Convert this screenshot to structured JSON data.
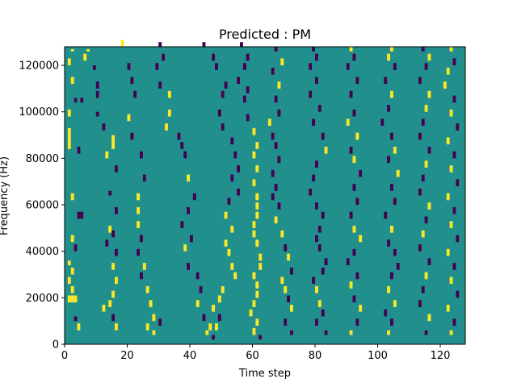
{
  "chart_data": {
    "type": "heatmap",
    "title": "Predicted : PM",
    "xlabel": "Time step",
    "ylabel": "Frequency (Hz)",
    "xlim": [
      0,
      128
    ],
    "ylim": [
      0,
      128000
    ],
    "x_ticks": [
      0,
      20,
      40,
      60,
      80,
      100,
      120
    ],
    "y_ticks": [
      0,
      20000,
      40000,
      60000,
      80000,
      100000,
      120000
    ],
    "colors": {
      "background": "#21908d",
      "high": "#fde725",
      "low": "#440154"
    },
    "n_time_steps": 128,
    "n_freq_bins": 128,
    "cells": [
      [
        2,
        126,
        1,
        "high"
      ],
      [
        1,
        120,
        3,
        "high"
      ],
      [
        2,
        112,
        3,
        "high"
      ],
      [
        3,
        104,
        2,
        "low"
      ],
      [
        5,
        104,
        2,
        "low"
      ],
      [
        1,
        98,
        3,
        "high"
      ],
      [
        1,
        90,
        3,
        "high"
      ],
      [
        1,
        84,
        6,
        "high"
      ],
      [
        4,
        82,
        3,
        "low"
      ],
      [
        2,
        62,
        3,
        "high"
      ],
      [
        4,
        54,
        3,
        "low"
      ],
      [
        5,
        54,
        3,
        "low"
      ],
      [
        2,
        44,
        3,
        "high"
      ],
      [
        3,
        40,
        3,
        "low"
      ],
      [
        1,
        34,
        2,
        "high"
      ],
      [
        2,
        30,
        3,
        "high"
      ],
      [
        1,
        26,
        3,
        "high"
      ],
      [
        2,
        22,
        3,
        "high"
      ],
      [
        1,
        18,
        3,
        "high"
      ],
      [
        2,
        18,
        3,
        "high"
      ],
      [
        3,
        18,
        3,
        "high"
      ],
      [
        3,
        10,
        2,
        "low"
      ],
      [
        4,
        6,
        3,
        "high"
      ],
      [
        7,
        126,
        1,
        "high"
      ],
      [
        6,
        122,
        3,
        "high"
      ],
      [
        9,
        118,
        2,
        "low"
      ],
      [
        10,
        110,
        3,
        "low"
      ],
      [
        10,
        106,
        3,
        "low"
      ],
      [
        10,
        98,
        2,
        "low"
      ],
      [
        12,
        92,
        3,
        "low"
      ],
      [
        15,
        84,
        6,
        "high"
      ],
      [
        13,
        80,
        3,
        "high"
      ],
      [
        16,
        74,
        3,
        "low"
      ],
      [
        14,
        64,
        2,
        "low"
      ],
      [
        16,
        56,
        3,
        "low"
      ],
      [
        14,
        48,
        3,
        "high"
      ],
      [
        15,
        46,
        3,
        "low"
      ],
      [
        13,
        42,
        3,
        "low"
      ],
      [
        16,
        38,
        3,
        "low"
      ],
      [
        15,
        32,
        3,
        "high"
      ],
      [
        16,
        26,
        3,
        "high"
      ],
      [
        15,
        20,
        3,
        "high"
      ],
      [
        14,
        16,
        3,
        "high"
      ],
      [
        12,
        14,
        3,
        "high"
      ],
      [
        15,
        10,
        3,
        "low"
      ],
      [
        16,
        6,
        3,
        "high"
      ],
      [
        18,
        128,
        3,
        "high"
      ],
      [
        20,
        118,
        3,
        "low"
      ],
      [
        21,
        112,
        3,
        "low"
      ],
      [
        22,
        106,
        3,
        "low"
      ],
      [
        20,
        96,
        3,
        "high"
      ],
      [
        21,
        88,
        3,
        "low"
      ],
      [
        24,
        80,
        3,
        "low"
      ],
      [
        25,
        70,
        3,
        "low"
      ],
      [
        23,
        62,
        3,
        "high"
      ],
      [
        23,
        56,
        3,
        "high"
      ],
      [
        23,
        50,
        3,
        "high"
      ],
      [
        24,
        44,
        3,
        "low"
      ],
      [
        23,
        38,
        3,
        "low"
      ],
      [
        25,
        32,
        3,
        "high"
      ],
      [
        24,
        28,
        3,
        "low"
      ],
      [
        26,
        22,
        3,
        "high"
      ],
      [
        27,
        16,
        3,
        "high"
      ],
      [
        28,
        10,
        3,
        "high"
      ],
      [
        30,
        8,
        3,
        "low"
      ],
      [
        26,
        6,
        3,
        "high"
      ],
      [
        28,
        4,
        2,
        "high"
      ],
      [
        30,
        128,
        2,
        "low"
      ],
      [
        31,
        122,
        3,
        "low"
      ],
      [
        29,
        118,
        3,
        "low"
      ],
      [
        30,
        110,
        3,
        "low"
      ],
      [
        33,
        106,
        3,
        "high"
      ],
      [
        33,
        98,
        3,
        "high"
      ],
      [
        32,
        92,
        3,
        "high"
      ],
      [
        36,
        88,
        3,
        "low"
      ],
      [
        37,
        84,
        3,
        "low"
      ],
      [
        38,
        80,
        3,
        "low"
      ],
      [
        39,
        70,
        3,
        "high"
      ],
      [
        41,
        62,
        3,
        "low"
      ],
      [
        39,
        56,
        3,
        "low"
      ],
      [
        37,
        50,
        3,
        "low"
      ],
      [
        40,
        44,
        3,
        "low"
      ],
      [
        38,
        40,
        3,
        "high"
      ],
      [
        39,
        32,
        3,
        "low"
      ],
      [
        42,
        28,
        3,
        "low"
      ],
      [
        43,
        22,
        3,
        "low"
      ],
      [
        42,
        16,
        3,
        "high"
      ],
      [
        44,
        10,
        3,
        "low"
      ],
      [
        46,
        6,
        3,
        "high"
      ],
      [
        45,
        4,
        2,
        "high"
      ],
      [
        44,
        128,
        2,
        "low"
      ],
      [
        47,
        122,
        3,
        "low"
      ],
      [
        48,
        118,
        3,
        "low"
      ],
      [
        51,
        110,
        3,
        "low"
      ],
      [
        50,
        106,
        3,
        "low"
      ],
      [
        49,
        98,
        3,
        "low"
      ],
      [
        50,
        92,
        3,
        "low"
      ],
      [
        53,
        86,
        3,
        "low"
      ],
      [
        54,
        80,
        3,
        "low"
      ],
      [
        55,
        74,
        3,
        "low"
      ],
      [
        53,
        70,
        3,
        "low"
      ],
      [
        55,
        64,
        3,
        "low"
      ],
      [
        52,
        60,
        3,
        "low"
      ],
      [
        51,
        54,
        3,
        "high"
      ],
      [
        53,
        48,
        3,
        "high"
      ],
      [
        51,
        42,
        3,
        "high"
      ],
      [
        52,
        38,
        3,
        "high"
      ],
      [
        53,
        32,
        3,
        "high"
      ],
      [
        54,
        28,
        3,
        "high"
      ],
      [
        50,
        22,
        3,
        "high"
      ],
      [
        49,
        18,
        3,
        "high"
      ],
      [
        47,
        14,
        3,
        "high"
      ],
      [
        49,
        10,
        3,
        "low"
      ],
      [
        48,
        6,
        3,
        "high"
      ],
      [
        47,
        2,
        2,
        "low"
      ],
      [
        56,
        128,
        2,
        "low"
      ],
      [
        58,
        122,
        3,
        "low"
      ],
      [
        57,
        118,
        3,
        "low"
      ],
      [
        55,
        112,
        3,
        "low"
      ],
      [
        58,
        108,
        3,
        "low"
      ],
      [
        57,
        104,
        3,
        "low"
      ],
      [
        58,
        96,
        3,
        "low"
      ],
      [
        60,
        90,
        3,
        "high"
      ],
      [
        61,
        84,
        3,
        "high"
      ],
      [
        60,
        80,
        3,
        "high"
      ],
      [
        61,
        74,
        3,
        "high"
      ],
      [
        60,
        68,
        3,
        "high"
      ],
      [
        61,
        62,
        3,
        "high"
      ],
      [
        61,
        58,
        3,
        "high"
      ],
      [
        61,
        54,
        3,
        "high"
      ],
      [
        60,
        50,
        3,
        "high"
      ],
      [
        60,
        46,
        3,
        "high"
      ],
      [
        61,
        42,
        3,
        "high"
      ],
      [
        62,
        36,
        3,
        "high"
      ],
      [
        62,
        32,
        3,
        "high"
      ],
      [
        60,
        28,
        3,
        "high"
      ],
      [
        61,
        24,
        3,
        "high"
      ],
      [
        61,
        20,
        3,
        "high"
      ],
      [
        60,
        16,
        3,
        "high"
      ],
      [
        59,
        12,
        3,
        "high"
      ],
      [
        61,
        8,
        3,
        "high"
      ],
      [
        60,
        4,
        3,
        "high"
      ],
      [
        62,
        2,
        2,
        "low"
      ],
      [
        67,
        126,
        2,
        "low"
      ],
      [
        69,
        120,
        3,
        "high"
      ],
      [
        66,
        116,
        3,
        "low"
      ],
      [
        68,
        110,
        3,
        "high"
      ],
      [
        67,
        104,
        3,
        "low"
      ],
      [
        68,
        98,
        3,
        "low"
      ],
      [
        65,
        94,
        3,
        "high"
      ],
      [
        66,
        88,
        3,
        "low"
      ],
      [
        67,
        84,
        3,
        "low"
      ],
      [
        68,
        78,
        3,
        "low"
      ],
      [
        66,
        72,
        3,
        "low"
      ],
      [
        67,
        66,
        3,
        "low"
      ],
      [
        66,
        62,
        3,
        "low"
      ],
      [
        68,
        58,
        3,
        "low"
      ],
      [
        67,
        52,
        3,
        "high"
      ],
      [
        69,
        46,
        3,
        "high"
      ],
      [
        70,
        40,
        3,
        "low"
      ],
      [
        71,
        36,
        3,
        "high"
      ],
      [
        72,
        30,
        3,
        "low"
      ],
      [
        69,
        26,
        3,
        "high"
      ],
      [
        70,
        22,
        3,
        "high"
      ],
      [
        71,
        18,
        3,
        "low"
      ],
      [
        72,
        14,
        3,
        "high"
      ],
      [
        70,
        8,
        3,
        "low"
      ],
      [
        72,
        4,
        2,
        "low"
      ],
      [
        79,
        126,
        2,
        "low"
      ],
      [
        80,
        122,
        3,
        "low"
      ],
      [
        78,
        118,
        3,
        "low"
      ],
      [
        80,
        112,
        3,
        "low"
      ],
      [
        78,
        106,
        3,
        "low"
      ],
      [
        81,
        100,
        3,
        "low"
      ],
      [
        79,
        94,
        3,
        "low"
      ],
      [
        82,
        88,
        3,
        "low"
      ],
      [
        83,
        82,
        3,
        "high"
      ],
      [
        80,
        76,
        3,
        "low"
      ],
      [
        79,
        70,
        3,
        "low"
      ],
      [
        78,
        64,
        3,
        "low"
      ],
      [
        80,
        58,
        3,
        "low"
      ],
      [
        82,
        54,
        3,
        "low"
      ],
      [
        81,
        48,
        3,
        "low"
      ],
      [
        80,
        44,
        3,
        "low"
      ],
      [
        81,
        40,
        3,
        "low"
      ],
      [
        83,
        34,
        3,
        "low"
      ],
      [
        82,
        30,
        3,
        "low"
      ],
      [
        79,
        26,
        3,
        "low"
      ],
      [
        80,
        22,
        3,
        "high"
      ],
      [
        81,
        16,
        3,
        "high"
      ],
      [
        82,
        12,
        3,
        "low"
      ],
      [
        80,
        8,
        3,
        "low"
      ],
      [
        83,
        4,
        2,
        "low"
      ],
      [
        91,
        126,
        2,
        "high"
      ],
      [
        92,
        122,
        3,
        "low"
      ],
      [
        90,
        118,
        3,
        "low"
      ],
      [
        93,
        112,
        3,
        "low"
      ],
      [
        91,
        106,
        3,
        "low"
      ],
      [
        92,
        98,
        3,
        "low"
      ],
      [
        90,
        94,
        3,
        "high"
      ],
      [
        93,
        88,
        3,
        "high"
      ],
      [
        91,
        82,
        3,
        "low"
      ],
      [
        92,
        78,
        3,
        "high"
      ],
      [
        94,
        72,
        3,
        "low"
      ],
      [
        92,
        66,
        3,
        "low"
      ],
      [
        93,
        60,
        3,
        "low"
      ],
      [
        91,
        54,
        3,
        "low"
      ],
      [
        92,
        48,
        3,
        "high"
      ],
      [
        94,
        44,
        3,
        "high"
      ],
      [
        92,
        38,
        3,
        "low"
      ],
      [
        90,
        34,
        3,
        "low"
      ],
      [
        93,
        28,
        3,
        "low"
      ],
      [
        91,
        24,
        3,
        "high"
      ],
      [
        92,
        18,
        3,
        "low"
      ],
      [
        94,
        14,
        3,
        "high"
      ],
      [
        93,
        8,
        3,
        "low"
      ],
      [
        91,
        4,
        2,
        "high"
      ],
      [
        104,
        126,
        2,
        "high"
      ],
      [
        103,
        122,
        3,
        "high"
      ],
      [
        105,
        118,
        3,
        "low"
      ],
      [
        102,
        112,
        3,
        "low"
      ],
      [
        104,
        106,
        3,
        "high"
      ],
      [
        103,
        100,
        3,
        "low"
      ],
      [
        101,
        94,
        3,
        "low"
      ],
      [
        104,
        88,
        3,
        "low"
      ],
      [
        105,
        82,
        3,
        "high"
      ],
      [
        103,
        78,
        3,
        "low"
      ],
      [
        106,
        72,
        3,
        "high"
      ],
      [
        104,
        66,
        3,
        "low"
      ],
      [
        105,
        60,
        3,
        "low"
      ],
      [
        102,
        54,
        3,
        "low"
      ],
      [
        104,
        48,
        3,
        "high"
      ],
      [
        103,
        42,
        3,
        "low"
      ],
      [
        105,
        38,
        3,
        "low"
      ],
      [
        106,
        32,
        3,
        "low"
      ],
      [
        104,
        28,
        3,
        "low"
      ],
      [
        103,
        22,
        3,
        "high"
      ],
      [
        105,
        16,
        3,
        "high"
      ],
      [
        102,
        12,
        3,
        "low"
      ],
      [
        104,
        8,
        3,
        "low"
      ],
      [
        103,
        4,
        2,
        "high"
      ],
      [
        114,
        126,
        2,
        "low"
      ],
      [
        116,
        122,
        3,
        "high"
      ],
      [
        115,
        118,
        3,
        "low"
      ],
      [
        113,
        112,
        3,
        "low"
      ],
      [
        116,
        106,
        3,
        "high"
      ],
      [
        115,
        100,
        3,
        "high"
      ],
      [
        114,
        94,
        3,
        "low"
      ],
      [
        113,
        88,
        3,
        "low"
      ],
      [
        116,
        82,
        3,
        "low"
      ],
      [
        115,
        76,
        3,
        "high"
      ],
      [
        114,
        70,
        3,
        "low"
      ],
      [
        113,
        64,
        3,
        "low"
      ],
      [
        116,
        58,
        3,
        "high"
      ],
      [
        115,
        52,
        3,
        "low"
      ],
      [
        114,
        46,
        3,
        "high"
      ],
      [
        113,
        40,
        3,
        "low"
      ],
      [
        116,
        34,
        3,
        "low"
      ],
      [
        115,
        28,
        3,
        "high"
      ],
      [
        114,
        22,
        3,
        "low"
      ],
      [
        113,
        16,
        3,
        "low"
      ],
      [
        116,
        10,
        3,
        "high"
      ],
      [
        115,
        4,
        2,
        "low"
      ],
      [
        123,
        126,
        2,
        "high"
      ],
      [
        124,
        120,
        3,
        "low"
      ],
      [
        122,
        116,
        3,
        "high"
      ],
      [
        121,
        110,
        3,
        "high"
      ],
      [
        124,
        104,
        3,
        "low"
      ],
      [
        123,
        98,
        3,
        "high"
      ],
      [
        125,
        92,
        3,
        "low"
      ],
      [
        122,
        86,
        3,
        "high"
      ],
      [
        124,
        80,
        3,
        "low"
      ],
      [
        123,
        74,
        3,
        "high"
      ],
      [
        125,
        68,
        3,
        "low"
      ],
      [
        122,
        62,
        3,
        "high"
      ],
      [
        124,
        56,
        3,
        "low"
      ],
      [
        123,
        50,
        3,
        "high"
      ],
      [
        125,
        44,
        3,
        "low"
      ],
      [
        122,
        38,
        3,
        "high"
      ],
      [
        124,
        32,
        3,
        "low"
      ],
      [
        123,
        26,
        3,
        "high"
      ],
      [
        125,
        20,
        3,
        "low"
      ],
      [
        122,
        14,
        3,
        "high"
      ],
      [
        124,
        8,
        3,
        "low"
      ],
      [
        123,
        4,
        2,
        "high"
      ]
    ]
  }
}
